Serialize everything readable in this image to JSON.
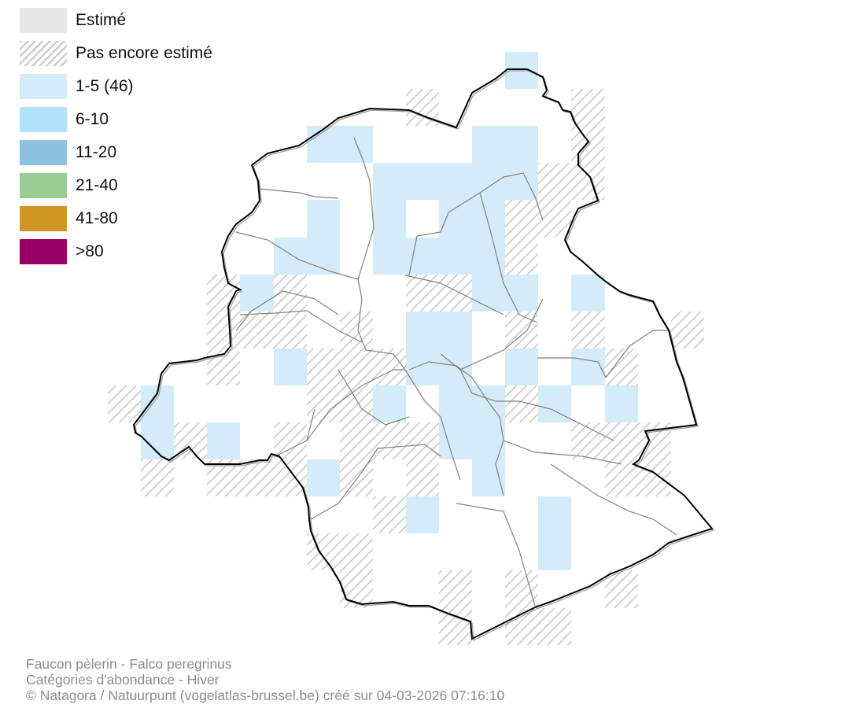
{
  "legend": {
    "items": [
      {
        "label": "Estimé",
        "color": "#e8e8e8",
        "pattern": "solid"
      },
      {
        "label": "Pas encore estimé",
        "color": "#cccccc",
        "pattern": "hatch"
      },
      {
        "label": "1-5 (46)",
        "color": "#d4ebf9",
        "pattern": "solid"
      },
      {
        "label": "6-10",
        "color": "#b3e3fa",
        "pattern": "solid"
      },
      {
        "label": "11-20",
        "color": "#8ac2df",
        "pattern": "solid"
      },
      {
        "label": "21-40",
        "color": "#9acb94",
        "pattern": "solid"
      },
      {
        "label": "41-80",
        "color": "#d09623",
        "pattern": "solid"
      },
      {
        "label": ">80",
        "color": "#990066",
        "pattern": "solid"
      }
    ]
  },
  "map": {
    "region_outline_color": "#000000",
    "commune_line_color": "#8a8079",
    "grid_cells": {
      "1-5": [
        [
          12,
          0
        ],
        [
          6,
          2
        ],
        [
          7,
          2
        ],
        [
          11,
          2
        ],
        [
          12,
          2
        ],
        [
          8,
          3
        ],
        [
          9,
          3
        ],
        [
          10,
          3
        ],
        [
          11,
          3
        ],
        [
          12,
          3
        ],
        [
          6,
          4
        ],
        [
          8,
          4
        ],
        [
          10,
          4
        ],
        [
          11,
          4
        ],
        [
          5,
          5
        ],
        [
          6,
          5
        ],
        [
          8,
          5
        ],
        [
          9,
          5
        ],
        [
          10,
          5
        ],
        [
          11,
          5
        ],
        [
          4,
          6
        ],
        [
          11,
          6
        ],
        [
          12,
          6
        ],
        [
          14,
          6
        ],
        [
          9,
          7
        ],
        [
          10,
          7
        ],
        [
          5,
          8
        ],
        [
          9,
          8
        ],
        [
          10,
          8
        ],
        [
          12,
          8
        ],
        [
          14,
          8
        ],
        [
          1,
          9
        ],
        [
          8,
          9
        ],
        [
          10,
          9
        ],
        [
          11,
          9
        ],
        [
          13,
          9
        ],
        [
          15,
          9
        ],
        [
          1,
          10
        ],
        [
          3,
          10
        ],
        [
          10,
          10
        ],
        [
          11,
          10
        ],
        [
          6,
          11
        ],
        [
          11,
          11
        ],
        [
          9,
          12
        ],
        [
          13,
          12
        ],
        [
          13,
          13
        ]
      ],
      "not_yet_estimated": [
        [
          9,
          1
        ],
        [
          14,
          1
        ],
        [
          14,
          2
        ],
        [
          13,
          3
        ],
        [
          14,
          3
        ],
        [
          12,
          4
        ],
        [
          13,
          4
        ],
        [
          12,
          5
        ],
        [
          3,
          6
        ],
        [
          5,
          6
        ],
        [
          9,
          6
        ],
        [
          10,
          6
        ],
        [
          3,
          7
        ],
        [
          4,
          7
        ],
        [
          5,
          7
        ],
        [
          7,
          7
        ],
        [
          12,
          7
        ],
        [
          14,
          7
        ],
        [
          17,
          7
        ],
        [
          3,
          8
        ],
        [
          6,
          8
        ],
        [
          7,
          8
        ],
        [
          8,
          8
        ],
        [
          15,
          8
        ],
        [
          0,
          9
        ],
        [
          6,
          9
        ],
        [
          7,
          9
        ],
        [
          12,
          9
        ],
        [
          2,
          10
        ],
        [
          5,
          10
        ],
        [
          7,
          10
        ],
        [
          8,
          10
        ],
        [
          9,
          10
        ],
        [
          14,
          10
        ],
        [
          15,
          10
        ],
        [
          16,
          10
        ],
        [
          1,
          11
        ],
        [
          3,
          11
        ],
        [
          4,
          11
        ],
        [
          5,
          11
        ],
        [
          7,
          11
        ],
        [
          9,
          11
        ],
        [
          15,
          11
        ],
        [
          16,
          11
        ],
        [
          8,
          12
        ],
        [
          6,
          13
        ],
        [
          7,
          13
        ],
        [
          7,
          14
        ],
        [
          10,
          14
        ],
        [
          12,
          14
        ],
        [
          15,
          14
        ],
        [
          10,
          15
        ],
        [
          12,
          15
        ],
        [
          13,
          15
        ]
      ]
    }
  },
  "footer": {
    "line1": "Faucon pèlerin - Falco peregrinus",
    "line2": "Catégories d'abondance - Hiver",
    "line3": "© Natagora / Natuurpunt (vogelatlas-brussel.be) créé sur 04-03-2026 07:16:10"
  }
}
